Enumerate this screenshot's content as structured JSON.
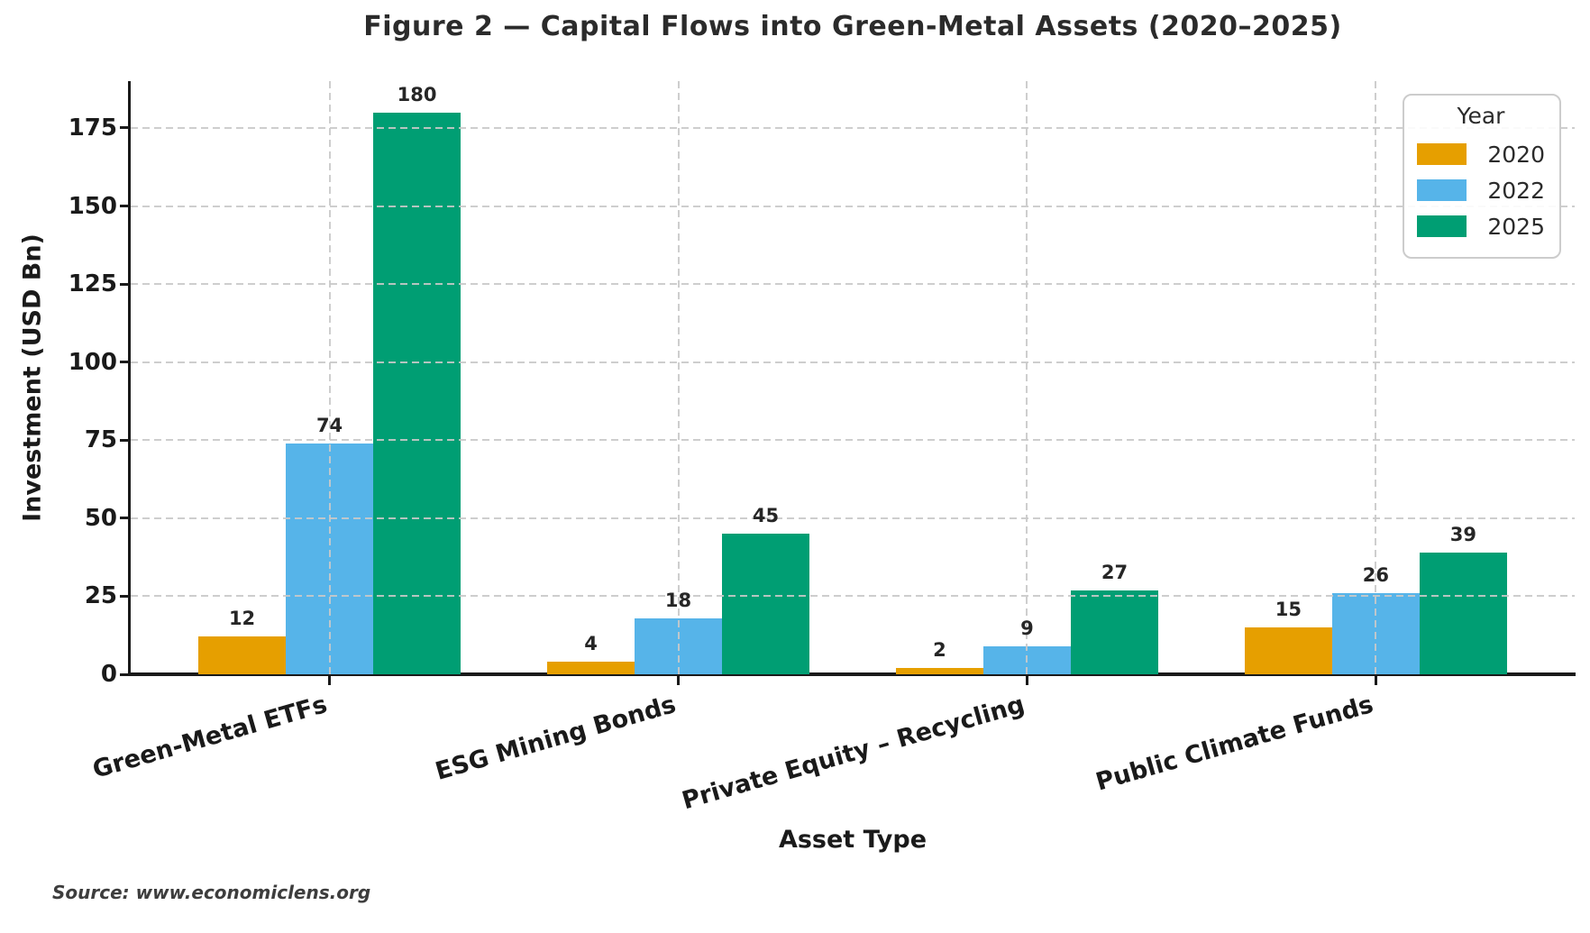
{
  "figure": {
    "title": "Figure 2 — Capital Flows into Green-Metal Assets (2020–2025)",
    "source": "Source: www.economiclens.org"
  },
  "chart_data": {
    "type": "bar",
    "title": "Figure 2 — Capital Flows into Green-Metal Assets (2020–2025)",
    "xlabel": "Asset Type",
    "ylabel": "Investment (USD Bn)",
    "categories": [
      "Green-Metal ETFs",
      "ESG Mining Bonds",
      "Private Equity – Recycling",
      "Public Climate Funds"
    ],
    "series": [
      {
        "name": "2020",
        "color": "#E69F00",
        "values": [
          12,
          4,
          2,
          15
        ]
      },
      {
        "name": "2022",
        "color": "#56B4E9",
        "values": [
          74,
          18,
          9,
          26
        ]
      },
      {
        "name": "2025",
        "color": "#009E73",
        "values": [
          180,
          45,
          27,
          39
        ]
      }
    ],
    "value_labels": [
      [
        12,
        4,
        2,
        15
      ],
      [
        74,
        18,
        9,
        26
      ],
      [
        180,
        45,
        27,
        39
      ]
    ],
    "ylim": [
      0,
      190
    ],
    "yticks": [
      0,
      25,
      50,
      75,
      100,
      125,
      150,
      175
    ],
    "grid": "dashed, drawn above bars",
    "legend": {
      "title": "Year",
      "entries": [
        "2020",
        "2022",
        "2025"
      ],
      "position": "upper right"
    }
  }
}
